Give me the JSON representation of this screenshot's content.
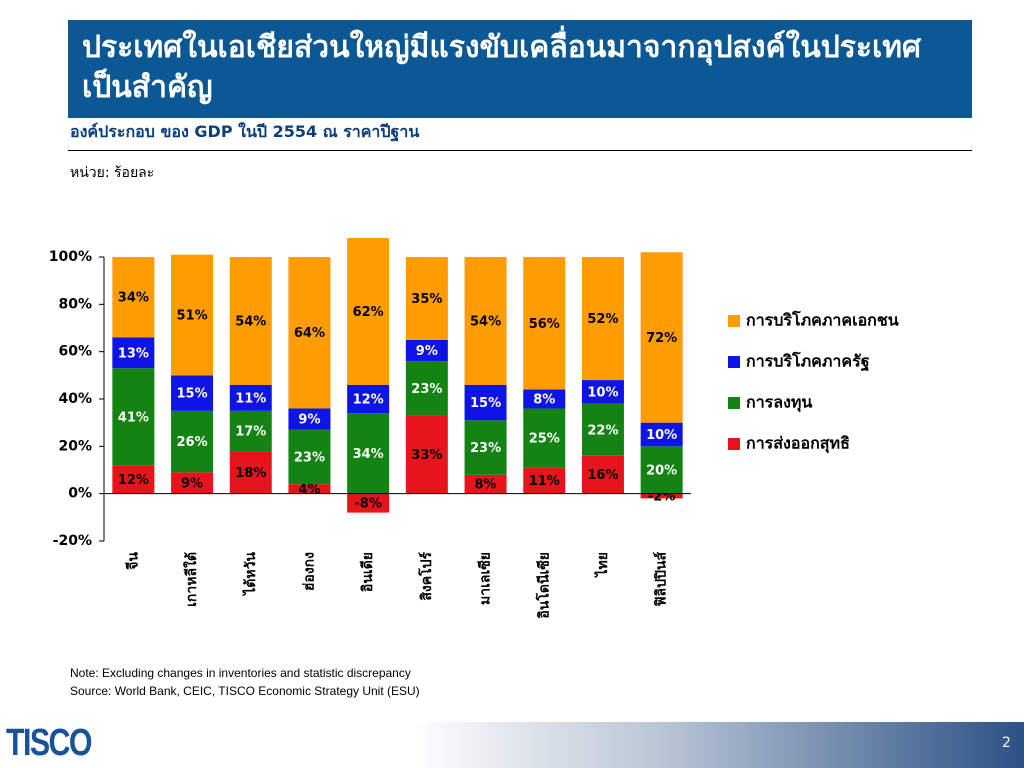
{
  "slide": {
    "title": "ประเทศในเอเชียส่วนใหญ่มีแรงขับเคลื่อนมาจากอุปสงค์ในประเทศเป็นสำคัญ",
    "note": "Note: Excluding changes in inventories and statistic discrepancy",
    "source": "Source: World Bank, CEIC, TISCO Economic Strategy Unit (ESU)",
    "logo": "TISCO",
    "page": "2"
  },
  "chart_data": {
    "type": "stacked-bar",
    "title": "องค์ประกอบ ของ GDP ในปี 2554 ณ ราคาปีฐาน",
    "unit": "หน่วย: ร้อยละ",
    "categories": [
      "จีน",
      "เกาหลีใต้",
      "ไต้หวัน",
      "ฮ่องกง",
      "อินเดีย",
      "สิงคโปร์",
      "มาเลเซีย",
      "อินโดนีเซีย",
      "ไทย",
      "ฟิลิปปินส์"
    ],
    "series": [
      {
        "name": "การส่งออกสุทธิ",
        "color": "#e8141b",
        "values": [
          12,
          9,
          18,
          4,
          -8,
          33,
          8,
          11,
          16,
          -2
        ],
        "value_labels": [
          "12%",
          "9%",
          "18%",
          "4%",
          "-8%",
          "33%",
          "8%",
          "11%",
          "16%",
          "-2%"
        ]
      },
      {
        "name": "การลงทุน",
        "color": "#138413",
        "values": [
          41,
          26,
          17,
          23,
          34,
          23,
          23,
          25,
          22,
          20
        ],
        "value_labels": [
          "41%",
          "26%",
          "17%",
          "23%",
          "34%",
          "23%",
          "23%",
          "25%",
          "22%",
          "20%"
        ]
      },
      {
        "name": "การบริโภคภาครัฐ",
        "color": "#0f14e6",
        "values": [
          13,
          15,
          11,
          9,
          12,
          9,
          15,
          8,
          10,
          10
        ],
        "value_labels": [
          "13%",
          "15%",
          "11%",
          "9%",
          "12%",
          "9%",
          "15%",
          "8%",
          "10%",
          "10%"
        ]
      },
      {
        "name": "การบริโภคภาคเอกชน",
        "color": "#ff9c00",
        "values": [
          34,
          51,
          54,
          64,
          62,
          35,
          54,
          56,
          52,
          72
        ],
        "value_labels": [
          "34%",
          "51%",
          "54%",
          "64%",
          "62%",
          "35%",
          "54%",
          "56%",
          "52%",
          "72%"
        ]
      }
    ],
    "ylim": [
      -20,
      100
    ],
    "yticks": [
      {
        "value": -20,
        "label": "-20%"
      },
      {
        "value": 0,
        "label": "0%"
      },
      {
        "value": 20,
        "label": "20%"
      },
      {
        "value": 40,
        "label": "40%"
      },
      {
        "value": 60,
        "label": "60%"
      },
      {
        "value": 80,
        "label": "80%"
      },
      {
        "value": 100,
        "label": "100%"
      }
    ],
    "legend": "right",
    "grid": false
  }
}
